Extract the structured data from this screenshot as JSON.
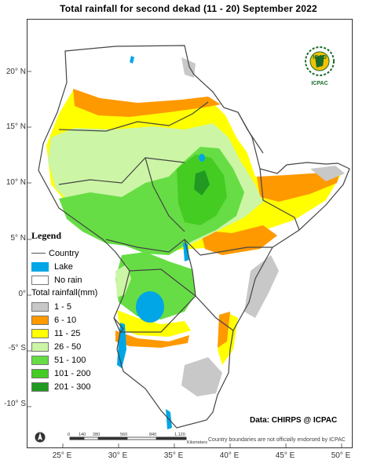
{
  "title": "Total rainfall  for  second  dekad (11 - 20)  September 2022",
  "lat_labels": [
    "20° N",
    "15° N",
    "10° N",
    "5° N",
    "0°",
    "-5° S",
    "-10° S"
  ],
  "lon_labels": [
    "25° E",
    "30° E",
    "35° E",
    "40° E",
    "45° E",
    "50° E"
  ],
  "legend": {
    "heading": "Legend",
    "country_label": "Country",
    "lake_label": "Lake",
    "no_rain_label": "No rain",
    "total_label": "Total rainfall(mm)",
    "classes": [
      {
        "label": "1 - 5",
        "color": "#c8c8c8"
      },
      {
        "label": "6 - 10",
        "color": "#ff9900"
      },
      {
        "label": "11 - 25",
        "color": "#ffff00"
      },
      {
        "label": "26 - 50",
        "color": "#ccf5a6"
      },
      {
        "label": "51 - 100",
        "color": "#66dd44"
      },
      {
        "label": "101 - 200",
        "color": "#44cc22"
      },
      {
        "label": "201 - 300",
        "color": "#229922"
      }
    ],
    "lake_color": "#00a6e6",
    "no_rain_color": "#ffffff"
  },
  "scale_bar": {
    "ticks": [
      "0",
      "140",
      "280",
      "560",
      "840",
      "1,120"
    ],
    "unit": "Kilometers"
  },
  "logo": {
    "top": "IGAD",
    "bottom": "ICPAC"
  },
  "credit": "Data: CHIRPS @ ICPAC",
  "disclaimer": "Country boundaries are not officially endorsed by ICPAC",
  "north_arrow": "north-arrow-icon"
}
